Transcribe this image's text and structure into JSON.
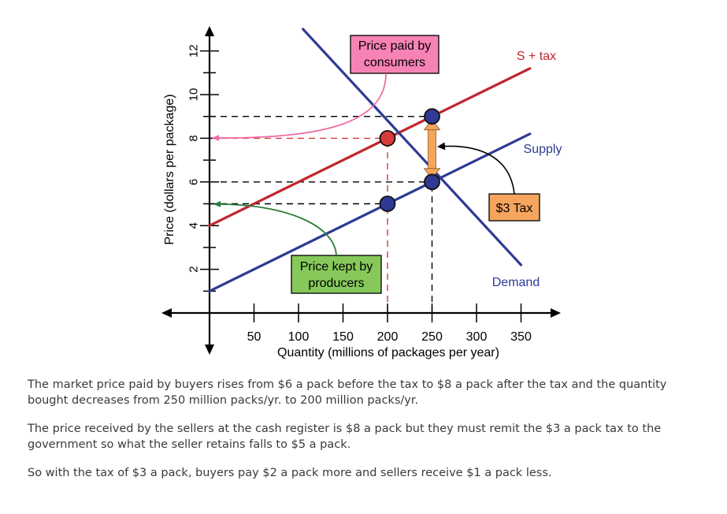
{
  "chart_data": {
    "type": "line",
    "ylabel": "Price (dollars per package)",
    "xlabel": "Quantity (millions of packages per year)",
    "x_ticks": [
      50,
      100,
      150,
      200,
      250,
      300,
      350
    ],
    "y_ticks": [
      2,
      4,
      6,
      8,
      10,
      12
    ],
    "xlim": [
      0,
      380
    ],
    "ylim": [
      0,
      13
    ],
    "series": [
      {
        "name": "S + tax",
        "color": "#c0272d",
        "points": [
          [
            0,
            4
          ],
          [
            360,
            11.2
          ]
        ]
      },
      {
        "name": "Supply",
        "color": "#2e3a94",
        "points": [
          [
            0,
            1
          ],
          [
            360,
            8.2
          ]
        ]
      },
      {
        "name": "Demand",
        "color": "#2e3a94",
        "points": [
          [
            105,
            13
          ],
          [
            350,
            2.2
          ]
        ]
      }
    ],
    "points": [
      {
        "x": 200,
        "y": 8,
        "color": "#d93a3a"
      },
      {
        "x": 200,
        "y": 5,
        "color": "#2e3a94"
      },
      {
        "x": 250,
        "y": 9,
        "color": "#2e3a94"
      },
      {
        "x": 250,
        "y": 6,
        "color": "#2e3a94"
      }
    ],
    "reference_lines": [
      {
        "y": 9,
        "x_end": 250,
        "color": "#000000"
      },
      {
        "y": 8,
        "x_end": 200,
        "color": "#d93a3a"
      },
      {
        "y": 6,
        "x_end": 250,
        "color": "#000000"
      },
      {
        "y": 5,
        "x_end": 200,
        "color": "#000000"
      },
      {
        "x": 200,
        "y_end": 8,
        "color": "#d93a3a"
      },
      {
        "x": 250,
        "y_end": 9,
        "color": "#000000"
      }
    ],
    "annotations": {
      "consumers": {
        "text1": "Price paid by",
        "text2": "consumers",
        "bg": "#f783b6"
      },
      "producers": {
        "text1": "Price kept by",
        "text2": "producers",
        "bg": "#86c85a"
      },
      "tax": {
        "text": "$3 Tax",
        "bg": "#f6a55e"
      },
      "tax_arrow": {
        "x": 250,
        "y_from": 9,
        "y_to": 6,
        "color": "#f6a55e"
      },
      "curve_labels": {
        "s_tax": "S + tax",
        "supply": "Supply",
        "demand": "Demand"
      }
    }
  },
  "text": {
    "p1": "The market price paid by buyers rises from $6 a pack before the tax to $8 a pack after the tax and the quantity bought decreases from 250 million packs/yr. to 200 million packs/yr.",
    "p2": "The price received by the sellers at the cash register is $8 a pack but they must remit the $3 a pack tax to the government so what the seller retains falls to $5 a pack.",
    "p3": "So with the tax of $3 a pack, buyers pay $2 a pack more and sellers receive $1 a pack less."
  }
}
